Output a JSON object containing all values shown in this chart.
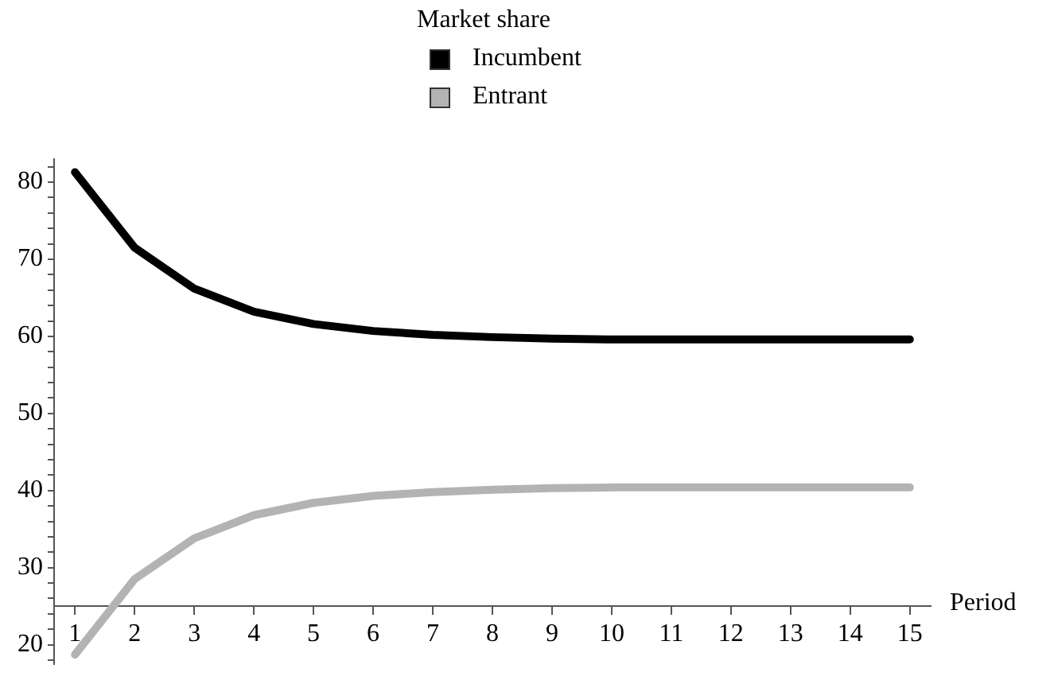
{
  "chart_data": {
    "type": "line",
    "xlabel": "Period",
    "legend_title": "Market share",
    "legend": "top",
    "x": [
      1,
      2,
      3,
      4,
      5,
      6,
      7,
      8,
      9,
      10,
      11,
      12,
      13,
      14,
      15
    ],
    "series": [
      {
        "name": "Incumbent",
        "color": "#000000",
        "values": [
          81.3,
          71.5,
          66.2,
          63.2,
          61.6,
          60.7,
          60.2,
          59.9,
          59.7,
          59.6,
          59.6,
          59.6,
          59.6,
          59.6,
          59.6
        ]
      },
      {
        "name": "Entrant",
        "color": "#b3b3b3",
        "values": [
          18.7,
          28.5,
          33.8,
          36.8,
          38.4,
          39.3,
          39.8,
          40.1,
          40.3,
          40.4,
          40.4,
          40.4,
          40.4,
          40.4,
          40.4
        ]
      }
    ],
    "xlim": [
      0.65,
      15.35
    ],
    "xticks": [
      1,
      2,
      3,
      4,
      5,
      6,
      7,
      8,
      9,
      10,
      11,
      12,
      13,
      14,
      15
    ],
    "ylim": [
      17.5,
      83
    ],
    "yticks": [
      {
        "value": 18,
        "label": null
      },
      20,
      {
        "value": 22,
        "label": null
      },
      {
        "value": 24,
        "label": null
      },
      {
        "value": 26,
        "label": null
      },
      {
        "value": 28,
        "label": null
      },
      30,
      {
        "value": 32,
        "label": null
      },
      {
        "value": 34,
        "label": null
      },
      {
        "value": 36,
        "label": null
      },
      {
        "value": 38,
        "label": null
      },
      40,
      {
        "value": 42,
        "label": null
      },
      {
        "value": 44,
        "label": null
      },
      {
        "value": 46,
        "label": null
      },
      {
        "value": 48,
        "label": null
      },
      50,
      {
        "value": 52,
        "label": null
      },
      {
        "value": 54,
        "label": null
      },
      {
        "value": 56,
        "label": null
      },
      {
        "value": 58,
        "label": null
      },
      60,
      {
        "value": 62,
        "label": null
      },
      {
        "value": 64,
        "label": null
      },
      {
        "value": 66,
        "label": null
      },
      {
        "value": 68,
        "label": null
      },
      70,
      {
        "value": 72,
        "label": null
      },
      {
        "value": 74,
        "label": null
      },
      {
        "value": 76,
        "label": null
      },
      {
        "value": 78,
        "label": null
      },
      80,
      {
        "value": 82,
        "label": null
      }
    ],
    "grid": false,
    "marker": "none",
    "line_style": "solid"
  }
}
